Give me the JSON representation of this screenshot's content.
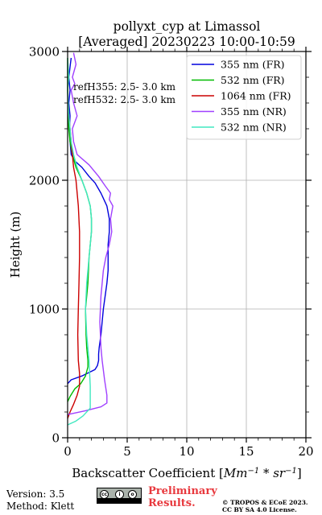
{
  "chart_data": {
    "type": "line",
    "title_line1": "pollyxt_cyp at Limassol",
    "title_line2": "[Averaged] 20230223 10:00-10:59",
    "xlabel_prefix": "Backscatter Coefficient [",
    "xlabel_unit_base": "Mm",
    "xlabel_unit_exp1": "−1",
    "xlabel_unit_mid": " * sr",
    "xlabel_unit_exp2": "−1",
    "xlabel_suffix": "]",
    "ylabel": "Height (m)",
    "xlim": [
      0,
      20
    ],
    "ylim": [
      0,
      3000
    ],
    "xticks": [
      0,
      5,
      10,
      15,
      20
    ],
    "yticks": [
      0,
      1000,
      2000,
      3000
    ],
    "xtick_labels": [
      "0",
      "5",
      "10",
      "15",
      "20"
    ],
    "ytick_labels": [
      "0",
      "1000",
      "2000",
      "3000"
    ],
    "grid": true,
    "legend_position": "top-right",
    "annotations": [
      "refH355:  2.5- 3.0 km",
      "refH532:  2.5- 3.0 km"
    ],
    "series": [
      {
        "name": "355 nm (FR)",
        "color": "#0000dd",
        "x": [
          0.0,
          0.3,
          1.2,
          2.3,
          2.5,
          2.6,
          2.6,
          2.65,
          2.8,
          3.0,
          3.3,
          3.4,
          3.4,
          3.4,
          3.5,
          3.5,
          3.3,
          2.8,
          2.3,
          1.8,
          1.2,
          0.6,
          0.3,
          0.2,
          0.15,
          0.2,
          0.1,
          0.2,
          0.1,
          0.2,
          0.3
        ],
        "y": [
          420,
          450,
          480,
          530,
          560,
          600,
          650,
          700,
          800,
          1000,
          1200,
          1300,
          1400,
          1500,
          1600,
          1700,
          1800,
          1900,
          1980,
          2030,
          2100,
          2150,
          2200,
          2300,
          2400,
          2500,
          2600,
          2700,
          2800,
          2880,
          2950
        ]
      },
      {
        "name": "532 nm (FR)",
        "color": "#00bb00",
        "x": [
          0.0,
          0.2,
          0.6,
          1.1,
          1.5,
          1.7,
          1.7,
          1.6,
          1.55,
          1.5,
          1.6,
          1.7,
          1.8,
          1.9,
          2.0,
          2.0,
          1.9,
          1.6,
          1.2,
          0.7,
          0.4,
          0.2,
          0.1,
          0.05,
          0.0,
          0.0
        ],
        "y": [
          280,
          320,
          380,
          420,
          480,
          550,
          600,
          700,
          800,
          1000,
          1100,
          1200,
          1400,
          1500,
          1600,
          1700,
          1800,
          1900,
          2000,
          2100,
          2200,
          2300,
          2400,
          2500,
          2700,
          2950
        ]
      },
      {
        "name": "1064 nm (FR)",
        "color": "#cc0000",
        "x": [
          0.0,
          0.2,
          0.5,
          0.8,
          1.0,
          1.0,
          0.9,
          0.85,
          0.9,
          0.95,
          1.0,
          1.0,
          0.9,
          0.7,
          0.5,
          0.4,
          0.3,
          0.2,
          0.1,
          0.05
        ],
        "y": [
          150,
          200,
          260,
          330,
          400,
          500,
          600,
          800,
          1000,
          1200,
          1400,
          1600,
          1800,
          2000,
          2100,
          2200,
          2300,
          2400,
          2500,
          2600
        ]
      },
      {
        "name": "355 nm (NR)",
        "color": "#a040ff",
        "x": [
          0.0,
          1.5,
          2.8,
          3.3,
          3.3,
          3.1,
          2.9,
          2.8,
          2.7,
          2.8,
          3.0,
          3.2,
          3.5,
          3.7,
          3.6,
          3.8,
          3.5,
          3.6,
          3.2,
          2.6,
          1.8,
          0.8,
          0.5,
          0.4,
          0.8,
          0.5,
          0.3,
          0.6,
          0.4,
          0.7,
          0.5
        ],
        "y": [
          180,
          210,
          240,
          270,
          330,
          450,
          600,
          700,
          900,
          1100,
          1300,
          1400,
          1500,
          1600,
          1700,
          1800,
          1850,
          1900,
          1950,
          2030,
          2120,
          2200,
          2300,
          2400,
          2500,
          2600,
          2700,
          2750,
          2800,
          2900,
          2990
        ]
      },
      {
        "name": "532 nm (NR)",
        "color": "#40e8c0",
        "x": [
          0.0,
          0.7,
          1.3,
          1.9,
          1.9,
          1.8,
          1.6,
          1.5,
          1.6,
          1.8,
          1.9,
          2.0,
          2.0,
          1.9,
          1.6,
          1.2,
          0.8,
          0.5,
          0.3,
          0.2,
          0.1,
          0.05,
          0.0,
          0.1,
          0.0
        ],
        "y": [
          100,
          130,
          170,
          230,
          400,
          600,
          800,
          1000,
          1200,
          1400,
          1500,
          1600,
          1700,
          1800,
          1900,
          2000,
          2100,
          2200,
          2300,
          2400,
          2500,
          2600,
          2700,
          2800,
          2950
        ]
      }
    ]
  },
  "footer": {
    "version": "Version: 3.5",
    "method": "Method: Klett",
    "preliminary_line1": "Preliminary",
    "preliminary_line2": "Results.",
    "copyright_line1": "© TROPOS & ECoE 2023.",
    "copyright_line2": "CC BY SA 4.0 License."
  }
}
